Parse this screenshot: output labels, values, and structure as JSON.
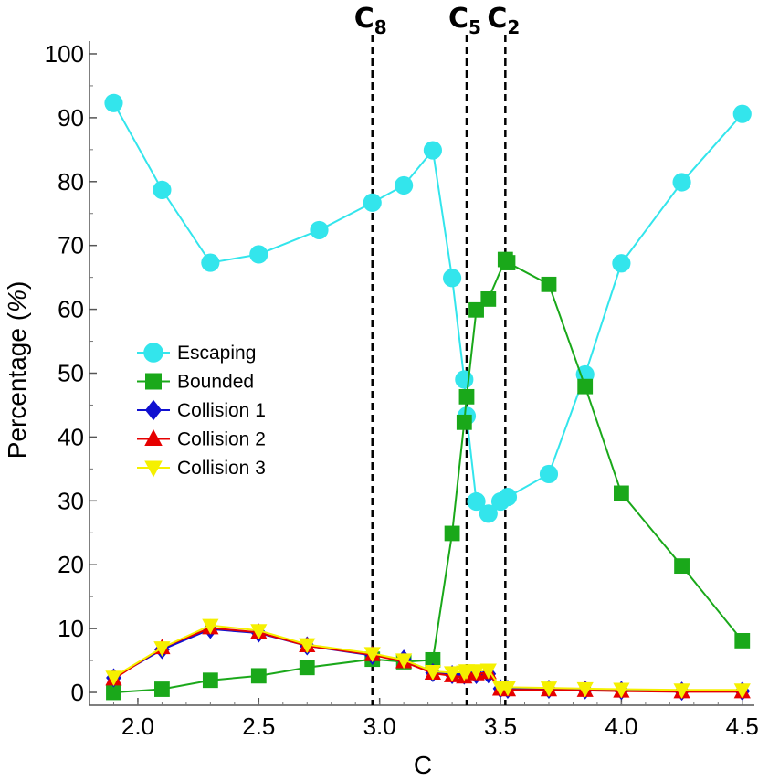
{
  "chart_data": {
    "type": "line",
    "title": "",
    "xlabel": "C",
    "ylabel_main": "Percentage (",
    "ylabel_unit": "%",
    "ylabel_close": ")",
    "xlim": [
      1.8,
      4.55
    ],
    "ylim": [
      -2,
      102
    ],
    "xticks": [
      2.0,
      2.5,
      3.0,
      3.5,
      4.0,
      4.5
    ],
    "xtick_labels": [
      "2.0",
      "2.5",
      "3.0",
      "3.5",
      "4.0",
      "4.5"
    ],
    "yticks": [
      0,
      10,
      20,
      30,
      40,
      50,
      60,
      70,
      80,
      90,
      100
    ],
    "ytick_labels": [
      "0",
      "10",
      "20",
      "30",
      "40",
      "50",
      "60",
      "70",
      "80",
      "90",
      "100"
    ],
    "grid": false,
    "legend_position": "middle-left",
    "vlines": [
      {
        "x": 2.97,
        "label": "C",
        "sub": "8"
      },
      {
        "x": 3.36,
        "label": "C",
        "sub": "5"
      },
      {
        "x": 3.52,
        "label": "C",
        "sub": "2"
      }
    ],
    "series": [
      {
        "name": "Escaping",
        "color": "#33e5ec",
        "marker": "circle",
        "x": [
          1.9,
          2.1,
          2.3,
          2.5,
          2.75,
          2.97,
          3.1,
          3.22,
          3.3,
          3.35,
          3.36,
          3.4,
          3.45,
          3.5,
          3.53,
          3.7,
          3.85,
          4.0,
          4.25,
          4.5
        ],
        "y": [
          92.3,
          78.7,
          67.3,
          68.6,
          72.4,
          76.7,
          79.4,
          84.9,
          64.9,
          49.0,
          43.3,
          29.9,
          28.0,
          29.9,
          30.6,
          34.2,
          49.8,
          67.2,
          79.9,
          90.6
        ]
      },
      {
        "name": "Bounded",
        "color": "#1aa81a",
        "marker": "square",
        "x": [
          1.9,
          2.1,
          2.3,
          2.5,
          2.7,
          2.97,
          3.1,
          3.22,
          3.3,
          3.35,
          3.36,
          3.4,
          3.45,
          3.52,
          3.53,
          3.7,
          3.85,
          4.0,
          4.25,
          4.5
        ],
        "y": [
          0.0,
          0.5,
          1.9,
          2.6,
          3.9,
          5.2,
          4.8,
          5.1,
          24.9,
          42.3,
          46.3,
          59.9,
          61.6,
          67.8,
          67.3,
          63.9,
          47.9,
          31.2,
          19.8,
          8.1
        ]
      },
      {
        "name": "Collision 1",
        "color": "#1010d0",
        "marker": "diamond",
        "x": [
          1.9,
          2.1,
          2.3,
          2.5,
          2.7,
          2.97,
          3.1,
          3.22,
          3.3,
          3.35,
          3.36,
          3.4,
          3.45,
          3.5,
          3.53,
          3.7,
          3.85,
          4.0,
          4.25,
          4.5
        ],
        "y": [
          2.3,
          6.7,
          9.9,
          9.3,
          7.3,
          5.8,
          5.2,
          3.1,
          2.8,
          2.7,
          2.9,
          2.8,
          2.9,
          0.6,
          0.5,
          0.5,
          0.4,
          0.3,
          0.2,
          0.2
        ]
      },
      {
        "name": "Collision 2",
        "color": "#e60000",
        "marker": "triangle-up",
        "x": [
          1.9,
          2.1,
          2.3,
          2.5,
          2.7,
          2.97,
          3.1,
          3.22,
          3.3,
          3.35,
          3.36,
          3.4,
          3.45,
          3.5,
          3.53,
          3.7,
          3.85,
          4.0,
          4.25,
          4.5
        ],
        "y": [
          2.1,
          7.0,
          10.1,
          9.4,
          7.3,
          5.9,
          4.8,
          3.0,
          2.6,
          2.4,
          3.0,
          2.9,
          3.1,
          0.5,
          0.4,
          0.4,
          0.3,
          0.2,
          0.1,
          0.1
        ]
      },
      {
        "name": "Collision 3",
        "color": "#f5f000",
        "marker": "triangle-down",
        "x": [
          1.9,
          2.1,
          2.3,
          2.5,
          2.7,
          2.97,
          3.1,
          3.22,
          3.3,
          3.35,
          3.36,
          3.4,
          3.45,
          3.5,
          3.53,
          3.7,
          3.85,
          4.0,
          4.25,
          4.5
        ],
        "y": [
          2.4,
          7.0,
          10.5,
          9.7,
          7.5,
          6.1,
          5.1,
          3.3,
          3.1,
          3.2,
          3.4,
          3.4,
          3.5,
          0.8,
          0.8,
          0.7,
          0.6,
          0.5,
          0.4,
          0.4
        ]
      }
    ]
  }
}
